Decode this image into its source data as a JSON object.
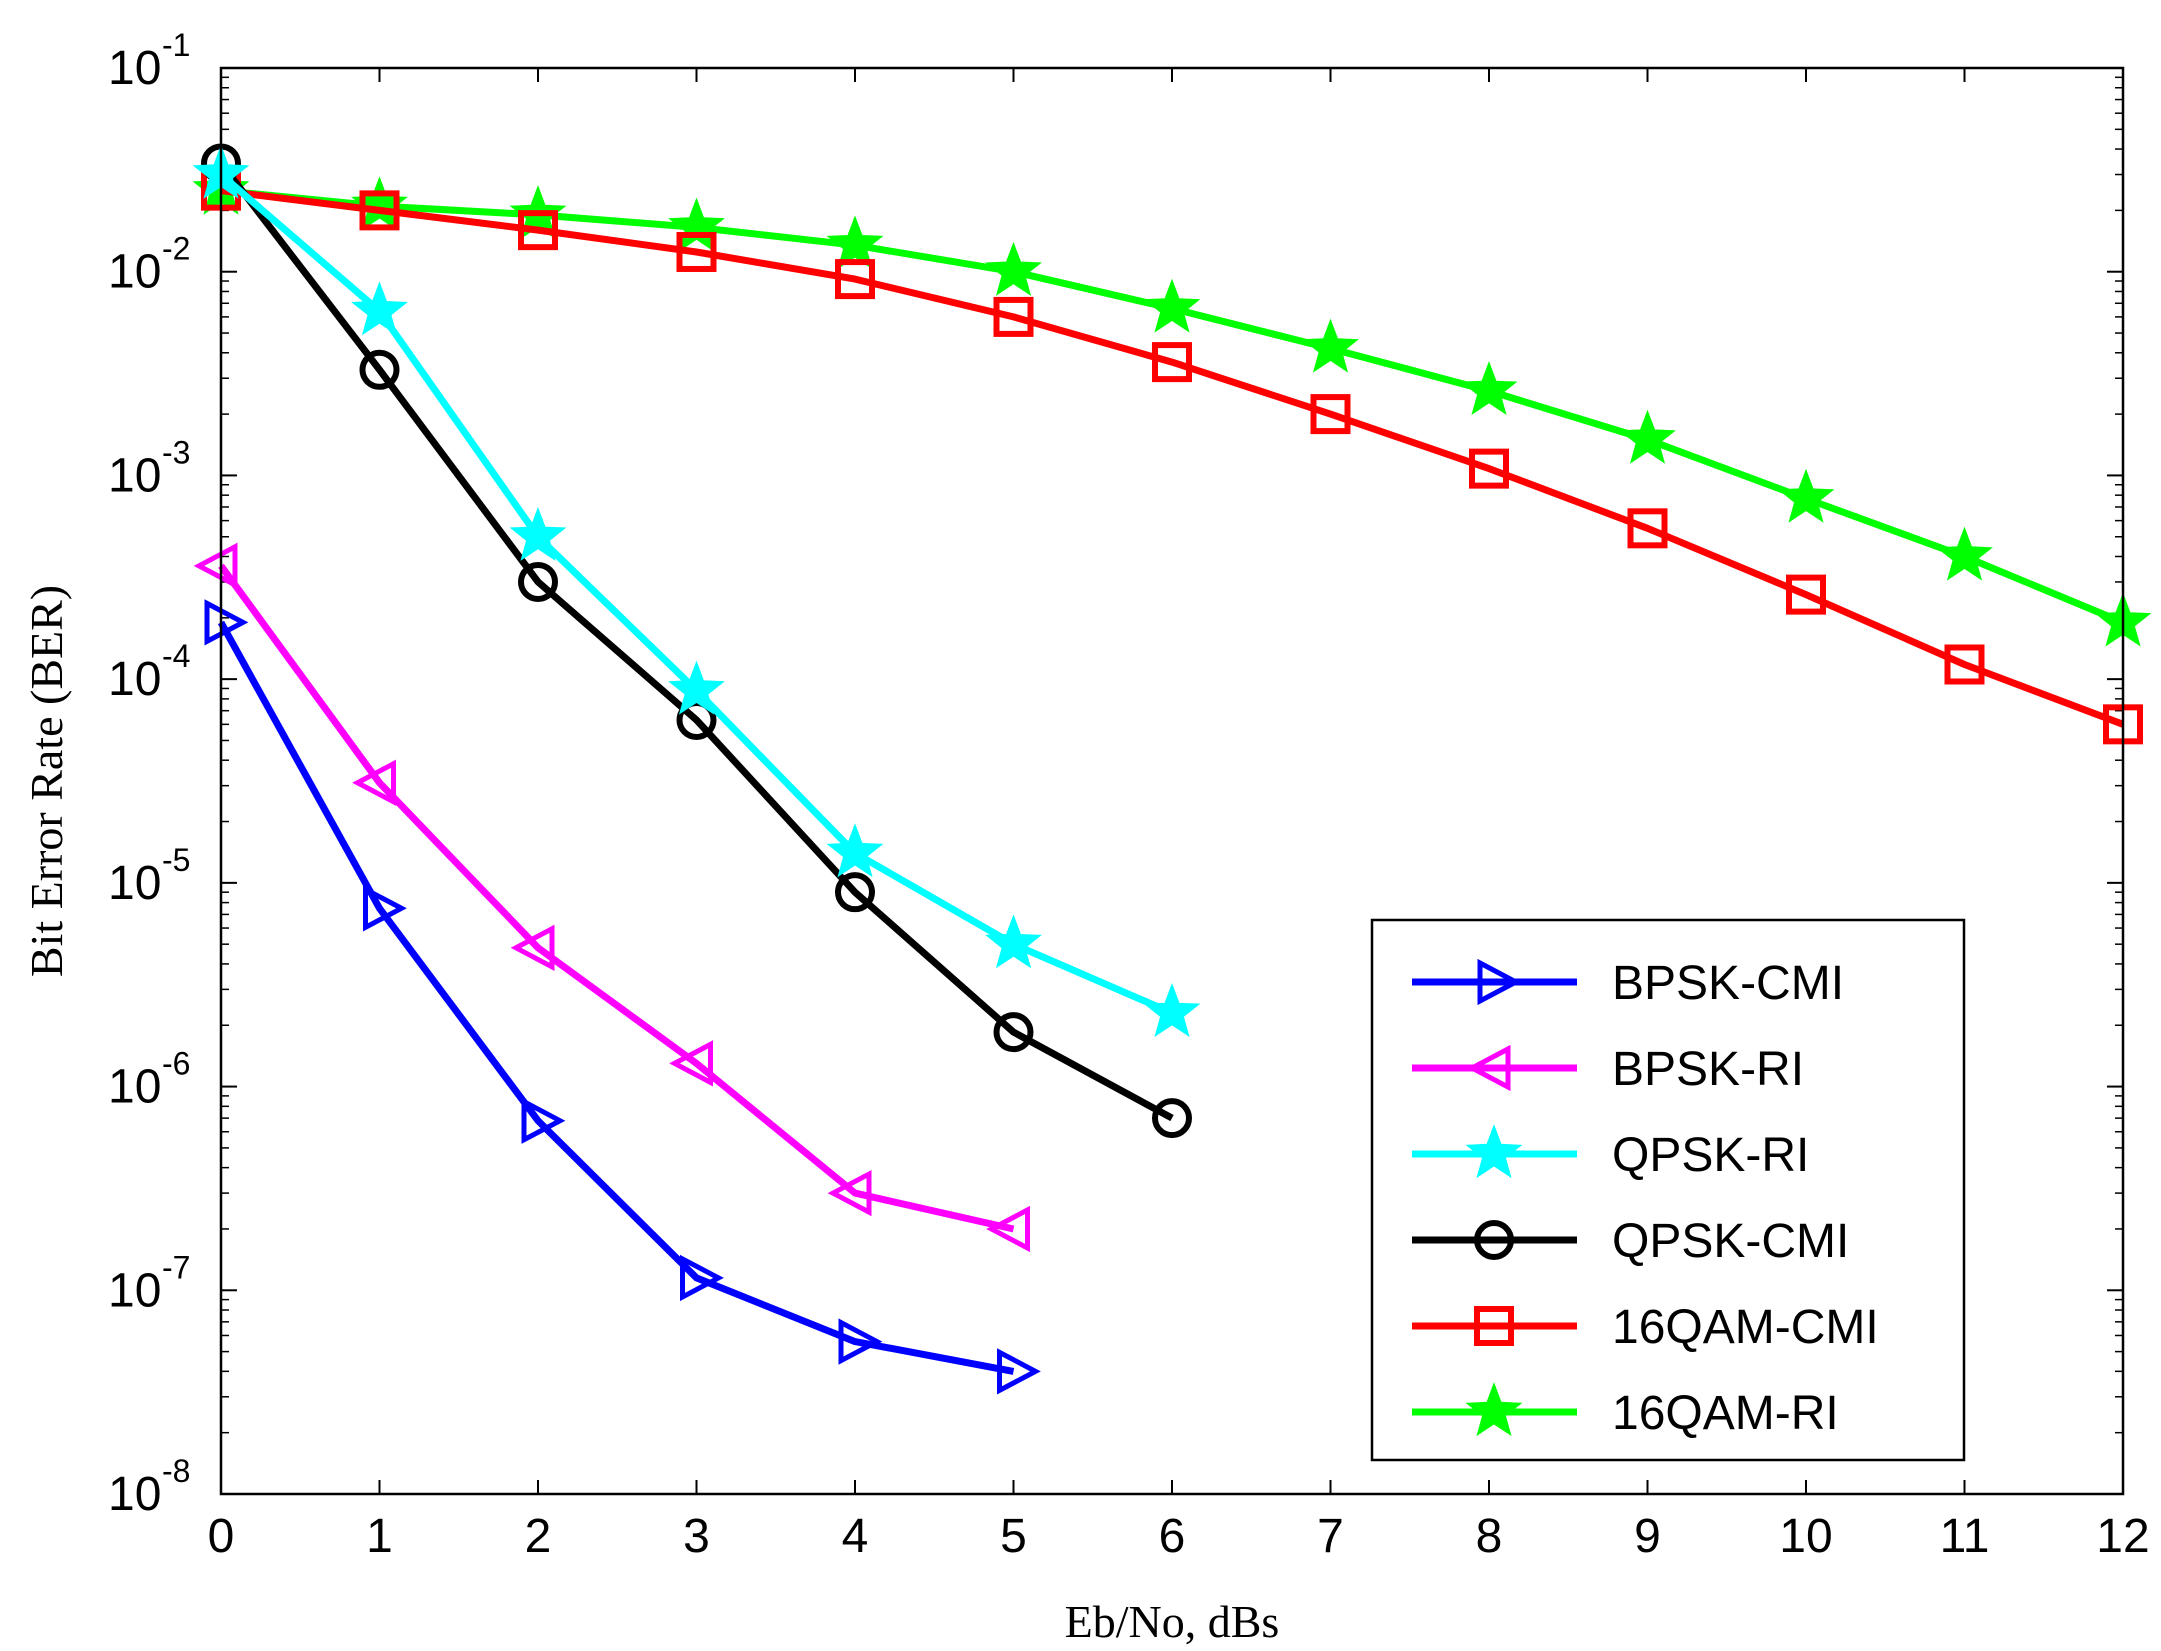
{
  "chart_data": {
    "type": "line",
    "title": "",
    "xlabel": "Eb/No, dBs",
    "ylabel": "Bit Error Rate (BER)",
    "xlim": [
      0,
      12
    ],
    "ylim": [
      1e-08,
      0.1
    ],
    "yscale": "log",
    "x_ticks": [
      "0",
      "1",
      "2",
      "3",
      "4",
      "5",
      "6",
      "7",
      "8",
      "9",
      "10",
      "11",
      "12"
    ],
    "y_ticks": [
      {
        "base": "10",
        "exp": "-8"
      },
      {
        "base": "10",
        "exp": "-7"
      },
      {
        "base": "10",
        "exp": "-6"
      },
      {
        "base": "10",
        "exp": "-5"
      },
      {
        "base": "10",
        "exp": "-4"
      },
      {
        "base": "10",
        "exp": "-3"
      },
      {
        "base": "10",
        "exp": "-2"
      },
      {
        "base": "10",
        "exp": "-1"
      }
    ],
    "grid": false,
    "legend_position": "bottom-right",
    "series": [
      {
        "name": "BPSK-CMI",
        "color": "#0000ff",
        "marker": "triangle-right",
        "x": [
          0,
          1,
          2,
          3,
          4,
          5
        ],
        "y": [
          0.00019,
          7.5e-06,
          6.8e-07,
          1.15e-07,
          5.6e-08,
          4e-08
        ]
      },
      {
        "name": "BPSK-RI",
        "color": "#ff00ff",
        "marker": "triangle-left",
        "x": [
          0,
          1,
          2,
          3,
          4,
          5
        ],
        "y": [
          0.00036,
          3.1e-05,
          4.8e-06,
          1.3e-06,
          3e-07,
          2e-07
        ]
      },
      {
        "name": "QPSK-RI",
        "color": "#00ffff",
        "marker": "star",
        "x": [
          0,
          1,
          2,
          3,
          4,
          5,
          6
        ],
        "y": [
          0.03,
          0.0064,
          0.0005,
          8.8e-05,
          1.4e-05,
          5e-06,
          2.3e-06
        ]
      },
      {
        "name": "QPSK-CMI",
        "color": "#000000",
        "marker": "circle",
        "x": [
          0,
          1,
          2,
          3,
          4,
          5,
          6
        ],
        "y": [
          0.034,
          0.0033,
          0.0003,
          6.3e-05,
          9e-06,
          1.85e-06,
          7e-07
        ]
      },
      {
        "name": "16QAM-CMI",
        "color": "#ff0000",
        "marker": "square",
        "x": [
          0,
          1,
          2,
          3,
          4,
          5,
          6,
          7,
          8,
          9,
          10,
          11,
          12
        ],
        "y": [
          0.025,
          0.02,
          0.016,
          0.0125,
          0.0092,
          0.006,
          0.0036,
          0.002,
          0.00108,
          0.00055,
          0.00026,
          0.000118,
          6e-05
        ]
      },
      {
        "name": "16QAM-RI",
        "color": "#00ff00",
        "marker": "star",
        "x": [
          0,
          1,
          2,
          3,
          4,
          5,
          6,
          7,
          8,
          9,
          10,
          11,
          12
        ],
        "y": [
          0.025,
          0.021,
          0.019,
          0.0165,
          0.0135,
          0.01,
          0.0066,
          0.0042,
          0.0026,
          0.0015,
          0.00077,
          0.0004,
          0.00019
        ]
      }
    ]
  }
}
